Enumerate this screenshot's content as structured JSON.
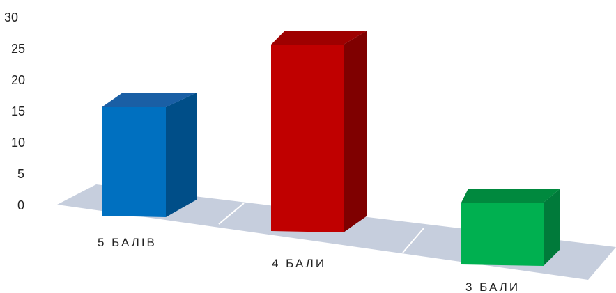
{
  "chart_data": {
    "type": "bar",
    "categories": [
      "5 БАЛІВ",
      "4 БАЛИ",
      "3 БАЛИ"
    ],
    "values": [
      15,
      25,
      5
    ],
    "ylim": [
      0,
      30
    ],
    "yticks": [
      "0",
      "5",
      "10",
      "15",
      "20",
      "25",
      "30"
    ],
    "grid": false,
    "legend": "none",
    "colors": {
      "series": [
        "#0070C0",
        "#C00000",
        "#00B050"
      ],
      "series_side": [
        "#004E88",
        "#7F0000",
        "#007A3A"
      ],
      "series_top": [
        "#1A5FA5",
        "#9E0000",
        "#00893E"
      ],
      "floor": "#C6CEDD"
    }
  }
}
